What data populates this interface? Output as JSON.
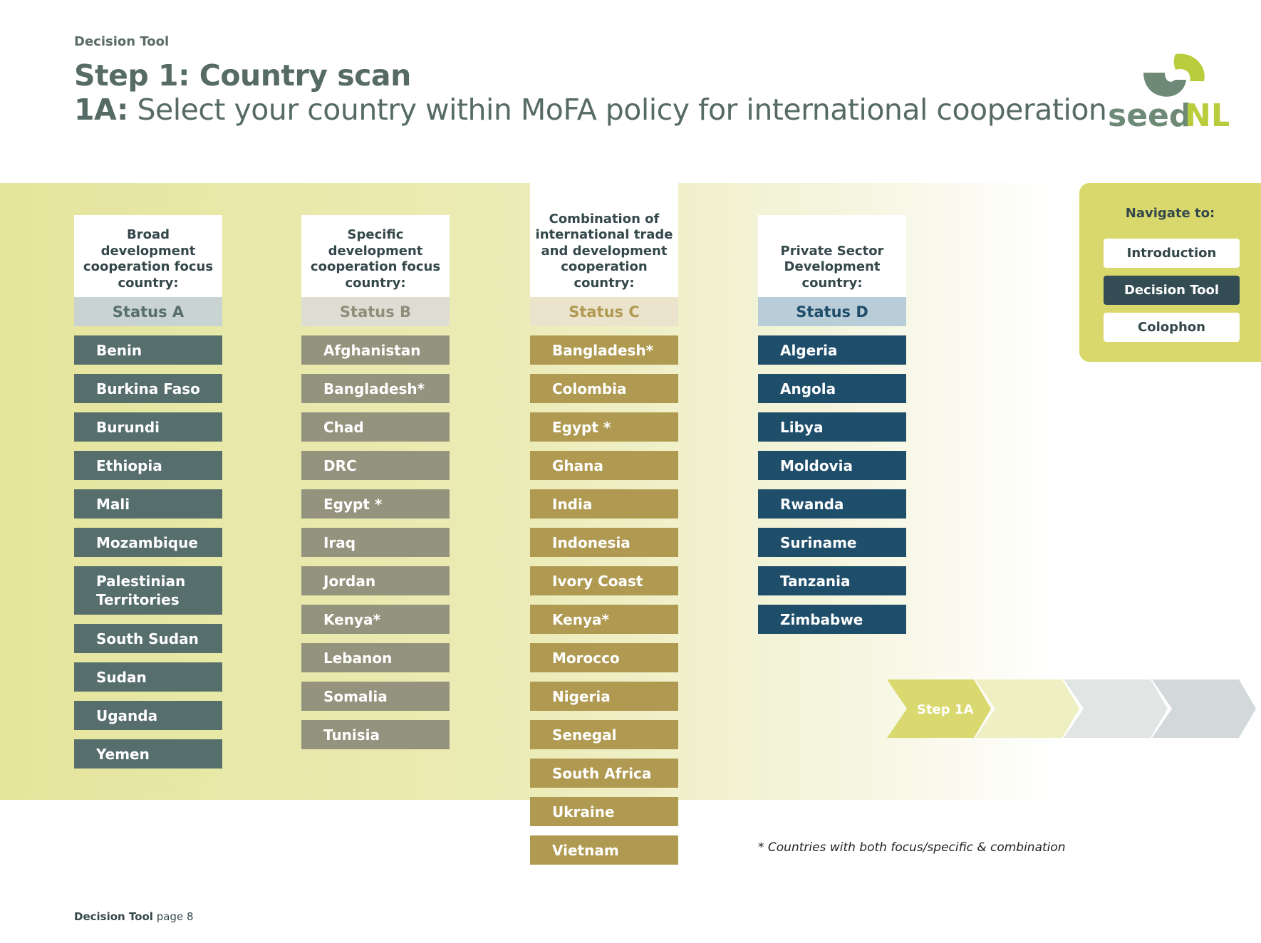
{
  "header": {
    "kicker": "Decision Tool",
    "title": "Step 1: Country scan",
    "subtitle_prefix": "1A:",
    "subtitle": "Select your country within MoFA policy for international cooperation",
    "logo_text": "seedNL"
  },
  "columns": [
    {
      "heading": "Broad development cooperation focus country:",
      "status": "Status A",
      "color": "#566e6c",
      "status_bg": "#c9d3d1",
      "status_fg": "#566e6c",
      "countries": [
        "Benin",
        "Burkina Faso",
        "Burundi",
        "Ethiopia",
        "Mali",
        "Mozambique",
        "Palestinian Territories",
        "South Sudan",
        "Sudan",
        "Uganda",
        "Yemen"
      ]
    },
    {
      "heading": "Specific development cooperation focus country:",
      "status": "Status B",
      "color": "#94937e",
      "status_bg": "#deddd4",
      "status_fg": "#8f8e7b",
      "countries": [
        "Afghanistan",
        "Bangladesh*",
        "Chad",
        "DRC",
        "Egypt *",
        "Iraq",
        "Jordan",
        "Kenya*",
        "Lebanon",
        "Somalia",
        "Tunisia"
      ]
    },
    {
      "heading": "Combination of international trade and development cooperation country:",
      "status": "Status C",
      "color": "#b09a52",
      "status_bg": "#ebe3cb",
      "status_fg": "#b09a52",
      "countries": [
        "Bangladesh*",
        "Colombia",
        "Egypt *",
        "Ghana",
        "India",
        "Indonesia",
        "Ivory Coast",
        "Kenya*",
        "Morocco",
        "Nigeria",
        "Senegal",
        "South Africa",
        "Ukraine",
        "Vietnam"
      ]
    },
    {
      "heading": "Private Sector Development country:",
      "status": "Status D",
      "color": "#1f4e6b",
      "status_bg": "#b9cdd8",
      "status_fg": "#1f4e6b",
      "countries": [
        "Algeria",
        "Angola",
        "Libya",
        "Moldovia",
        "Rwanda",
        "Suriname",
        "Tanzania",
        "Zimbabwe"
      ]
    }
  ],
  "nav": {
    "title": "Navigate to:",
    "items": [
      "Introduction",
      "Decision Tool",
      "Colophon"
    ],
    "active": 1
  },
  "steps": {
    "current": "Step 1A",
    "colors": [
      "#dad96f",
      "#efefc4",
      "#e1e6e5",
      "#d3d9db"
    ]
  },
  "footnote": "* Countries with both focus/specific & combination",
  "footer": {
    "section": "Decision Tool",
    "page": "page 8"
  }
}
